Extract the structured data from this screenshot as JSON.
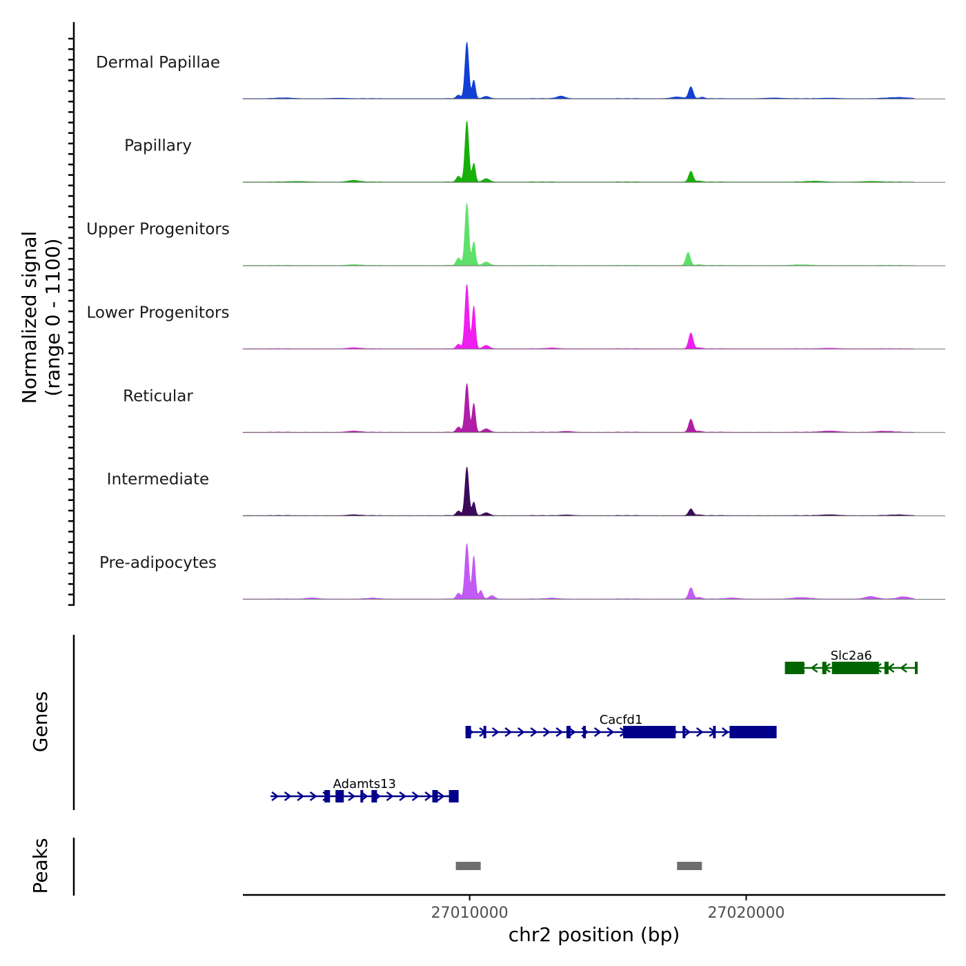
{
  "chart_data": {
    "type": "area",
    "title": "",
    "ylabel_line1": "Normalized signal",
    "ylabel_line2": "(range 0 - 1100)",
    "ylim": [
      0,
      1100
    ],
    "xlabel": "chr2 position (bp)",
    "xlim": [
      27001800,
      27027200
    ],
    "xticks": [
      27010000,
      27020000
    ],
    "xtick_labels": [
      "27010000",
      "27020000"
    ],
    "series": [
      {
        "name": "Dermal Papillae",
        "color": "#1240d6",
        "peaks": [
          [
            27009900,
            1000,
            70
          ],
          [
            27010150,
            330,
            60
          ],
          [
            27009600,
            60,
            80
          ],
          [
            27010600,
            40,
            120
          ],
          [
            27003300,
            12,
            300
          ],
          [
            27005300,
            8,
            300
          ],
          [
            27013300,
            45,
            150
          ],
          [
            27017500,
            30,
            200
          ],
          [
            27018000,
            210,
            80
          ],
          [
            27018400,
            25,
            90
          ],
          [
            27021000,
            12,
            300
          ],
          [
            27023000,
            10,
            300
          ],
          [
            27025500,
            20,
            400
          ]
        ]
      },
      {
        "name": "Papillary",
        "color": "#17b00b",
        "peaks": [
          [
            27009900,
            1080,
            70
          ],
          [
            27010150,
            330,
            60
          ],
          [
            27009600,
            100,
            80
          ],
          [
            27010600,
            60,
            120
          ],
          [
            27003800,
            10,
            300
          ],
          [
            27005800,
            30,
            200
          ],
          [
            27018000,
            190,
            80
          ],
          [
            27018300,
            20,
            90
          ],
          [
            27022500,
            15,
            300
          ],
          [
            27024500,
            12,
            300
          ]
        ]
      },
      {
        "name": "Upper Progenitors",
        "color": "#5ee06a",
        "peaks": [
          [
            27009900,
            1100,
            70
          ],
          [
            27010150,
            420,
            60
          ],
          [
            27009600,
            130,
            80
          ],
          [
            27010600,
            60,
            120
          ],
          [
            27005800,
            15,
            200
          ],
          [
            27017900,
            230,
            80
          ],
          [
            27018300,
            15,
            90
          ],
          [
            27022000,
            10,
            300
          ]
        ]
      },
      {
        "name": "Lower Progenitors",
        "color": "#f01ef0",
        "peaks": [
          [
            27009900,
            1140,
            70
          ],
          [
            27010150,
            760,
            60
          ],
          [
            27009600,
            80,
            80
          ],
          [
            27010600,
            60,
            120
          ],
          [
            27005800,
            20,
            200
          ],
          [
            27013000,
            15,
            200
          ],
          [
            27018000,
            280,
            80
          ],
          [
            27018300,
            20,
            90
          ],
          [
            27023000,
            10,
            300
          ]
        ]
      },
      {
        "name": "Reticular",
        "color": "#b01ea6",
        "peaks": [
          [
            27009900,
            860,
            70
          ],
          [
            27010150,
            510,
            60
          ],
          [
            27009600,
            90,
            80
          ],
          [
            27010600,
            60,
            120
          ],
          [
            27005800,
            20,
            200
          ],
          [
            27013500,
            15,
            200
          ],
          [
            27018000,
            230,
            80
          ],
          [
            27018300,
            20,
            90
          ],
          [
            27023000,
            20,
            300
          ],
          [
            27025000,
            15,
            300
          ]
        ]
      },
      {
        "name": "Intermediate",
        "color": "#3b0a5a",
        "peaks": [
          [
            27009900,
            860,
            70
          ],
          [
            27010150,
            240,
            60
          ],
          [
            27009600,
            80,
            80
          ],
          [
            27010600,
            50,
            120
          ],
          [
            27005800,
            15,
            200
          ],
          [
            27013500,
            12,
            200
          ],
          [
            27018000,
            120,
            80
          ],
          [
            27018300,
            15,
            90
          ],
          [
            27023000,
            15,
            300
          ],
          [
            27025500,
            12,
            300
          ]
        ]
      },
      {
        "name": "Pre-adipocytes",
        "color": "#c25af4",
        "peaks": [
          [
            27009900,
            980,
            70
          ],
          [
            27010150,
            760,
            60
          ],
          [
            27009600,
            100,
            80
          ],
          [
            27010400,
            150,
            70
          ],
          [
            27010800,
            60,
            100
          ],
          [
            27004300,
            20,
            200
          ],
          [
            27006500,
            15,
            200
          ],
          [
            27013000,
            15,
            200
          ],
          [
            27018000,
            200,
            80
          ],
          [
            27018300,
            30,
            90
          ],
          [
            27019500,
            20,
            200
          ],
          [
            27022000,
            25,
            300
          ],
          [
            27024500,
            45,
            200
          ],
          [
            27025700,
            40,
            200
          ]
        ]
      }
    ],
    "genes_label": "Genes",
    "genes": [
      {
        "name": "Slc2a6",
        "strand": "-",
        "color": "#006400",
        "start": 27021400,
        "end": 27026200,
        "row": 0,
        "exons": [
          [
            27021400,
            27022100
          ],
          [
            27022750,
            27022900
          ],
          [
            27023100,
            27024800
          ],
          [
            27025000,
            27025150
          ],
          [
            27026100,
            27026200
          ]
        ]
      },
      {
        "name": "Cacfd1",
        "strand": "+",
        "color": "#00008b",
        "start": 27009850,
        "end": 27021100,
        "row": 1,
        "exons": [
          [
            27009850,
            27010050
          ],
          [
            27010500,
            27010600
          ],
          [
            27013500,
            27013650
          ],
          [
            27014100,
            27014200
          ],
          [
            27015550,
            27017450
          ],
          [
            27017700,
            27017800
          ],
          [
            27018800,
            27018900
          ],
          [
            27019400,
            27021100
          ]
        ]
      },
      {
        "name": "Adamts13",
        "strand": "+",
        "color": "#00008b",
        "start": 27002800,
        "end": 27009600,
        "row": 2,
        "exons": [
          [
            27004750,
            27004950
          ],
          [
            27005150,
            27005450
          ],
          [
            27006050,
            27006150
          ],
          [
            27006450,
            27006650
          ],
          [
            27008650,
            27008850
          ],
          [
            27009250,
            27009600
          ]
        ]
      }
    ],
    "peaks_label": "Peaks",
    "peak_regions": [
      [
        27009500,
        27010400
      ],
      [
        27017500,
        27018400
      ]
    ],
    "peak_color": "#6e6e6e"
  }
}
